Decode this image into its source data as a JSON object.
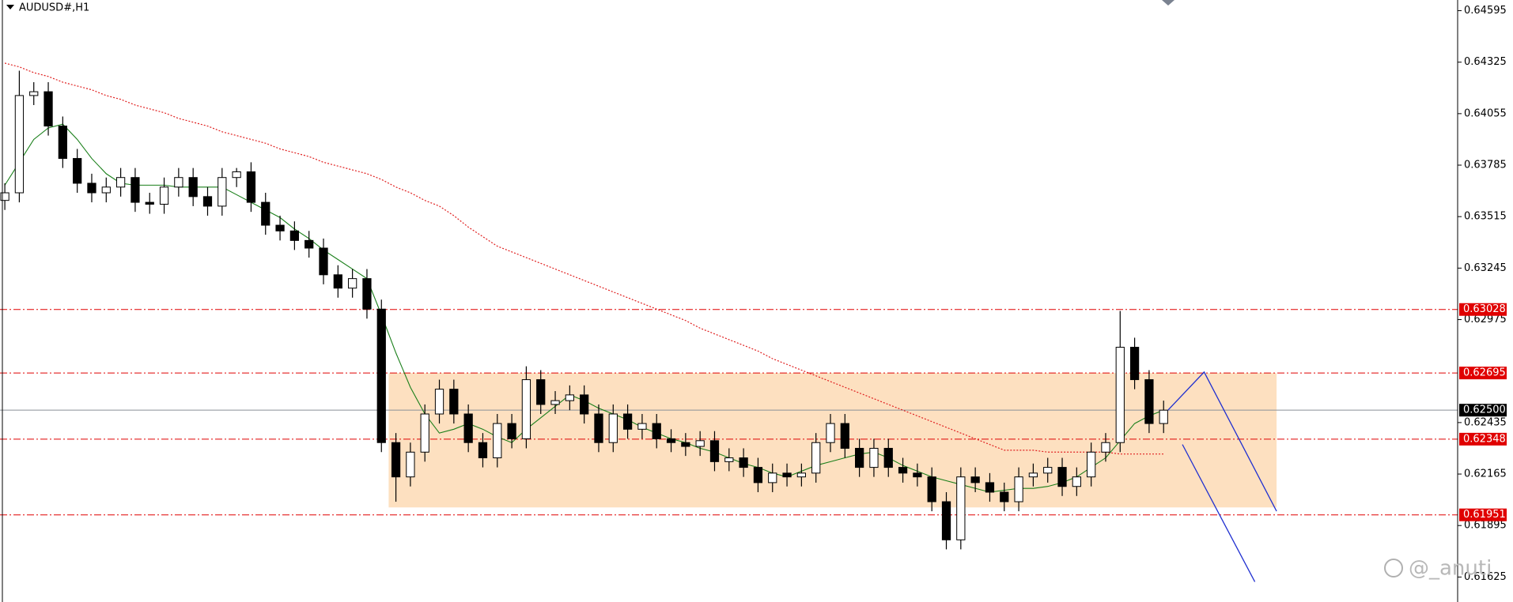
{
  "chart_data": {
    "type": "candlestick",
    "title": "AUDUSD#,H1",
    "ylim": [
      0.61494,
      0.64651
    ],
    "xlim": [
      0.667,
      101.3
    ],
    "yticks": [
      0.64595,
      0.64325,
      0.64055,
      0.63785,
      0.63515,
      0.63245,
      0.62975,
      0.62435,
      0.62165,
      0.61895,
      0.61625
    ],
    "up_color": "#ffffff",
    "down_color": "#000000",
    "open": [
      0.636,
      0.6364,
      0.6415,
      0.6417,
      0.6399,
      0.6382,
      0.6369,
      0.6364,
      0.6367,
      0.6372,
      0.6359,
      0.6358,
      0.6367,
      0.6372,
      0.6362,
      0.6357,
      0.6372,
      0.6375,
      0.6359,
      0.6347,
      0.6344,
      0.6339,
      0.6335,
      0.6321,
      0.6314,
      0.6319,
      0.6303,
      0.6233,
      0.6215,
      0.6228,
      0.6248,
      0.6261,
      0.6248,
      0.6233,
      0.6225,
      0.6243,
      0.6235,
      0.6266,
      0.6253,
      0.6255,
      0.6258,
      0.6248,
      0.6233,
      0.6248,
      0.624,
      0.6243,
      0.6235,
      0.6233,
      0.6231,
      0.6234,
      0.6223,
      0.6225,
      0.622,
      0.6212,
      0.6217,
      0.6215,
      0.6217,
      0.6233,
      0.6243,
      0.623,
      0.622,
      0.623,
      0.622,
      0.6217,
      0.6215,
      0.6202,
      0.6182,
      0.6215,
      0.6212,
      0.6207,
      0.6202,
      0.6215,
      0.6217,
      0.622,
      0.621,
      0.6215,
      0.6228,
      0.6233,
      0.6283,
      0.6266,
      0.6243
    ],
    "high": [
      0.6369,
      0.6428,
      0.6422,
      0.6422,
      0.6404,
      0.6387,
      0.6374,
      0.6372,
      0.6377,
      0.6377,
      0.6364,
      0.6372,
      0.6377,
      0.6377,
      0.6367,
      0.6377,
      0.6377,
      0.638,
      0.6364,
      0.6352,
      0.6349,
      0.6344,
      0.634,
      0.6326,
      0.6324,
      0.6324,
      0.6308,
      0.6238,
      0.6233,
      0.6253,
      0.6266,
      0.6266,
      0.6253,
      0.6238,
      0.6248,
      0.6248,
      0.6273,
      0.6271,
      0.626,
      0.6263,
      0.6263,
      0.6253,
      0.6253,
      0.6253,
      0.6248,
      0.6248,
      0.624,
      0.6238,
      0.6239,
      0.6239,
      0.623,
      0.623,
      0.6225,
      0.6222,
      0.6222,
      0.6222,
      0.6238,
      0.6248,
      0.6248,
      0.6235,
      0.6235,
      0.6235,
      0.6225,
      0.6222,
      0.622,
      0.6207,
      0.622,
      0.622,
      0.6217,
      0.6212,
      0.622,
      0.6222,
      0.6225,
      0.6225,
      0.622,
      0.6233,
      0.6238,
      0.6302,
      0.6288,
      0.6271,
      0.6255
    ],
    "low": [
      0.6355,
      0.6359,
      0.641,
      0.6394,
      0.6377,
      0.6364,
      0.6359,
      0.6359,
      0.6362,
      0.6354,
      0.6353,
      0.6353,
      0.6362,
      0.6357,
      0.6352,
      0.6352,
      0.6367,
      0.6354,
      0.6342,
      0.6339,
      0.6334,
      0.633,
      0.6316,
      0.6309,
      0.6309,
      0.6298,
      0.6228,
      0.6202,
      0.621,
      0.6223,
      0.6243,
      0.6243,
      0.6228,
      0.622,
      0.622,
      0.623,
      0.623,
      0.6248,
      0.6248,
      0.625,
      0.6243,
      0.6228,
      0.6228,
      0.6235,
      0.6235,
      0.623,
      0.6228,
      0.6226,
      0.6226,
      0.6218,
      0.6218,
      0.6215,
      0.6207,
      0.6207,
      0.621,
      0.621,
      0.6212,
      0.6228,
      0.6225,
      0.6215,
      0.6215,
      0.6215,
      0.6212,
      0.621,
      0.6197,
      0.6177,
      0.6177,
      0.6207,
      0.6202,
      0.6197,
      0.6197,
      0.621,
      0.6212,
      0.6205,
      0.6205,
      0.621,
      0.6223,
      0.6228,
      0.6261,
      0.6238,
      0.6238
    ],
    "close": [
      0.6364,
      0.6415,
      0.6417,
      0.6399,
      0.6382,
      0.6369,
      0.6364,
      0.6367,
      0.6372,
      0.6359,
      0.6358,
      0.6367,
      0.6372,
      0.6362,
      0.6357,
      0.6372,
      0.6375,
      0.6359,
      0.6347,
      0.6344,
      0.6339,
      0.6335,
      0.6321,
      0.6314,
      0.6319,
      0.6303,
      0.6233,
      0.6215,
      0.6228,
      0.6248,
      0.6261,
      0.6248,
      0.6233,
      0.6225,
      0.6243,
      0.6235,
      0.6266,
      0.6253,
      0.6255,
      0.6258,
      0.6248,
      0.6233,
      0.6248,
      0.624,
      0.6243,
      0.6235,
      0.6233,
      0.6231,
      0.6234,
      0.6223,
      0.6225,
      0.622,
      0.6212,
      0.6217,
      0.6215,
      0.6217,
      0.6233,
      0.6243,
      0.623,
      0.622,
      0.623,
      0.622,
      0.6217,
      0.6215,
      0.6202,
      0.6182,
      0.6215,
      0.6212,
      0.6207,
      0.6202,
      0.6215,
      0.6217,
      0.622,
      0.621,
      0.6215,
      0.6228,
      0.6233,
      0.6283,
      0.6266,
      0.6243,
      0.625
    ],
    "overlays": [
      {
        "color": "#1a7f1a",
        "style": "solid",
        "values": [
          0.6368,
          0.638,
          0.6392,
          0.6398,
          0.64,
          0.6392,
          0.6382,
          0.6374,
          0.6369,
          0.6368,
          0.6368,
          0.6368,
          0.6367,
          0.6367,
          0.6367,
          0.6367,
          0.6363,
          0.6359,
          0.6355,
          0.6351,
          0.6345,
          0.634,
          0.6334,
          0.6329,
          0.6324,
          0.6319,
          0.63,
          0.628,
          0.6262,
          0.6248,
          0.6238,
          0.624,
          0.6243,
          0.624,
          0.6236,
          0.6233,
          0.624,
          0.6246,
          0.6252,
          0.6258,
          0.6255,
          0.6251,
          0.6248,
          0.6245,
          0.6241,
          0.6238,
          0.6235,
          0.6233,
          0.623,
          0.6228,
          0.6225,
          0.6222,
          0.622,
          0.6217,
          0.6215,
          0.6218,
          0.6221,
          0.6223,
          0.6225,
          0.6227,
          0.6228,
          0.6225,
          0.6221,
          0.6218,
          0.6215,
          0.6213,
          0.6211,
          0.6209,
          0.6207,
          0.6208,
          0.6209,
          0.6209,
          0.621,
          0.6212,
          0.6215,
          0.622,
          0.6225,
          0.6234,
          0.6243,
          0.6247,
          0.625
        ]
      },
      {
        "color": "#e02020",
        "style": "dotted",
        "values": [
          0.6432,
          0.643,
          0.6427,
          0.6425,
          0.6422,
          0.642,
          0.6418,
          0.6415,
          0.6413,
          0.641,
          0.6408,
          0.6406,
          0.6403,
          0.6401,
          0.6399,
          0.6396,
          0.6394,
          0.6392,
          0.639,
          0.6387,
          0.6385,
          0.6383,
          0.638,
          0.6378,
          0.6376,
          0.6374,
          0.6371,
          0.6367,
          0.6364,
          0.636,
          0.6357,
          0.6352,
          0.6346,
          0.6341,
          0.6336,
          0.6333,
          0.633,
          0.6327,
          0.6324,
          0.6321,
          0.6318,
          0.6315,
          0.6312,
          0.6309,
          0.6306,
          0.6303,
          0.63,
          0.6297,
          0.6293,
          0.629,
          0.6287,
          0.6284,
          0.6281,
          0.6277,
          0.6274,
          0.6271,
          0.6268,
          0.6265,
          0.6262,
          0.6259,
          0.6256,
          0.6253,
          0.625,
          0.6247,
          0.6244,
          0.6241,
          0.6238,
          0.6235,
          0.6232,
          0.6229,
          0.6229,
          0.6229,
          0.6228,
          0.6228,
          0.6228,
          0.6228,
          0.6228,
          0.6227,
          0.6227,
          0.6227,
          0.6227
        ]
      }
    ],
    "levels": [
      {
        "value": 0.63028,
        "color": "#e00000"
      },
      {
        "value": 0.62695,
        "color": "#e00000"
      },
      {
        "value": 0.62348,
        "color": "#e00000"
      },
      {
        "value": 0.61951,
        "color": "#e00000"
      }
    ],
    "current_price": {
      "value": 0.625,
      "label": "0.62500"
    },
    "zone": {
      "x": [
        27.5,
        88.8
      ],
      "y": [
        0.62695,
        0.6199
      ],
      "color": "#fde0c0"
    },
    "projections": [
      {
        "color": "#1f2fd0",
        "x": [
          81.3,
          83.8,
          88.8
        ],
        "y": [
          0.625,
          0.627,
          0.6197
        ]
      },
      {
        "color": "#1f2fd0",
        "x": [
          82.3,
          87.3
        ],
        "y": [
          0.6232,
          0.616
        ]
      }
    ],
    "watermark": "@_anuti"
  }
}
